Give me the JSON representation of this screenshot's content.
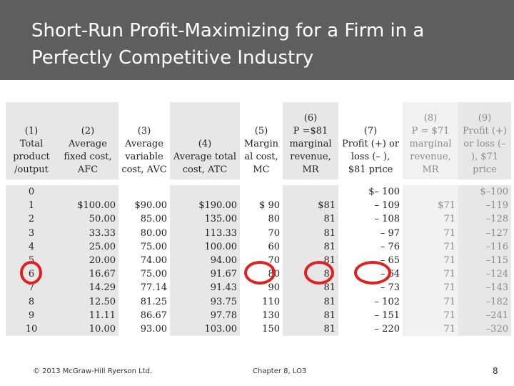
{
  "slide": {
    "title": "Short-Run Profit-Maximizing for a Firm in a Perfectly Competitive Industry",
    "footer_left": "© 2013 McGraw-Hill Ryerson Ltd.",
    "footer_center": "Chapter 8, LO3",
    "page_number": "8"
  },
  "table": {
    "headers": [
      [
        "(1)",
        "Total product /output"
      ],
      [
        "(2)",
        "Average fixed cost, AFC"
      ],
      [
        "(3)",
        "Average variable cost, AVC"
      ],
      [
        "(4)",
        "Average total cost, ATC"
      ],
      [
        "(5)",
        "Margin al cost, MC"
      ],
      [
        "(6)",
        "P =$81 marginal revenue, MR"
      ],
      [
        "(7)",
        "Profit (+) or loss (– ), $81 price"
      ],
      [
        "(8)",
        "P = $71 marginal revenue, MR"
      ],
      [
        "(9)",
        "Profit (+) or loss (– ), $71 price"
      ]
    ],
    "rows": [
      [
        "0",
        "",
        "",
        "",
        "",
        "",
        "$– 100",
        "",
        "$–100"
      ],
      [
        "1",
        "$100.00",
        "$90.00",
        "$190.00",
        "$ 90",
        "$81",
        "– 109",
        "$71",
        "–119"
      ],
      [
        "2",
        "50.00",
        "85.00",
        "135.00",
        "80",
        "81",
        "– 108",
        "71",
        "–128"
      ],
      [
        "3",
        "33.33",
        "80.00",
        "113.33",
        "70",
        "81",
        "– 97",
        "71",
        "–127"
      ],
      [
        "4",
        "25.00",
        "75.00",
        "100.00",
        "60",
        "81",
        "– 76",
        "71",
        "–116"
      ],
      [
        "5",
        "20.00",
        "74.00",
        "94.00",
        "70",
        "81",
        "– 65",
        "71",
        "–115"
      ],
      [
        "6",
        "16.67",
        "75.00",
        "91.67",
        "80",
        "81",
        "– 64",
        "71",
        "–124"
      ],
      [
        "7",
        "14.29",
        "77.14",
        "91.43",
        "90",
        "81",
        "– 73",
        "71",
        "–143"
      ],
      [
        "8",
        "12.50",
        "81.25",
        "93.75",
        "110",
        "81",
        "– 102",
        "71",
        "–182"
      ],
      [
        "9",
        "11.11",
        "86.67",
        "97.78",
        "130",
        "81",
        "– 151",
        "71",
        "–241"
      ],
      [
        "10",
        "10.00",
        "93.00",
        "103.00",
        "150",
        "81",
        "– 220",
        "71",
        "–320"
      ]
    ]
  },
  "colors": {
    "title_bar": "#5e5e5e",
    "table_gray": "#e7e7e7",
    "highlight_circle": "#e02020"
  }
}
